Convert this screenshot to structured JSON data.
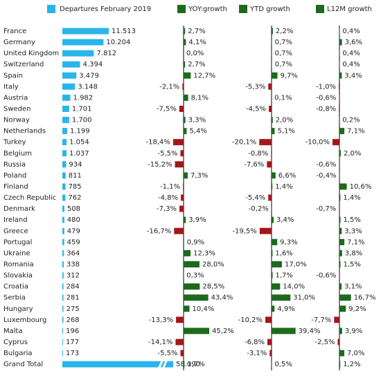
{
  "chart_data": {
    "type": "bar",
    "categories": [
      "France",
      "Germany",
      "United Kingdom",
      "Switzerland",
      "Spain",
      "Italy",
      "Austria",
      "Sweden",
      "Norway",
      "Netherlands",
      "Turkey",
      "Belgium",
      "Russia",
      "Poland",
      "Finland",
      "Czech Republic",
      "Denmark",
      "Ireland",
      "Greece",
      "Portugal",
      "Ukraine",
      "Romania",
      "Slovakia",
      "Croatia",
      "Serbia",
      "Hungary",
      "Luxembourg",
      "Malta",
      "Cyprus",
      "Bulgaria",
      "Grand Total"
    ],
    "negative_color": "#a3161a",
    "series": [
      {
        "name": "Departures February 2019",
        "color": "#29b5ea",
        "values": [
          11513,
          10204,
          7812,
          4394,
          3479,
          3148,
          1982,
          1701,
          1700,
          1199,
          1054,
          1037,
          934,
          811,
          785,
          762,
          508,
          480,
          479,
          459,
          364,
          338,
          312,
          284,
          281,
          275,
          268,
          196,
          177,
          173,
          58090
        ],
        "value_labels": [
          "11.513",
          "10.204",
          "7.812",
          "4.394",
          "3.479",
          "3.148",
          "1.982",
          "1.701",
          "1.700",
          "1.199",
          "1.054",
          "1.037",
          "934",
          "811",
          "785",
          "762",
          "508",
          "480",
          "479",
          "459",
          "364",
          "338",
          "312",
          "284",
          "281",
          "275",
          "268",
          "196",
          "177",
          "173",
          "58.090"
        ]
      },
      {
        "name": "YOY:growth",
        "color": "#1d6a1d",
        "values": [
          2.7,
          4.1,
          0.0,
          2.7,
          12.7,
          -2.1,
          8.1,
          -7.5,
          3.3,
          5.4,
          -18.4,
          -5.5,
          -15.2,
          7.3,
          -1.1,
          -4.8,
          -7.3,
          3.9,
          -16.7,
          0.9,
          12.3,
          28.0,
          0.3,
          28.5,
          43.4,
          10.4,
          -13.3,
          45.2,
          -14.1,
          -5.5,
          1.7
        ],
        "value_labels": [
          "2,7%",
          "4,1%",
          "0,0%",
          "2,7%",
          "12,7%",
          "-2,1%",
          "8,1%",
          "-7,5%",
          "3,3%",
          "5,4%",
          "-18,4%",
          "-5,5%",
          "-15,2%",
          "7,3%",
          "-1,1%",
          "-4,8%",
          "-7,3%",
          "3,9%",
          "-16,7%",
          "0,9%",
          "12,3%",
          "28,0%",
          "0,3%",
          "28,5%",
          "43,4%",
          "10,4%",
          "-13,3%",
          "45,2%",
          "-14,1%",
          "-5,5%",
          "1,7%"
        ]
      },
      {
        "name": "YTD growth",
        "color": "#1d6a1d",
        "values": [
          2.2,
          0.7,
          0.7,
          0.7,
          9.7,
          -5.3,
          0.1,
          -4.5,
          2.0,
          5.1,
          -20.1,
          -0.8,
          -7.6,
          6.6,
          1.4,
          -5.4,
          -0.2,
          3.4,
          -19.5,
          9.3,
          1.6,
          17.0,
          1.7,
          14.0,
          31.0,
          4.9,
          -10.2,
          39.4,
          -6.8,
          -3.1,
          0.5
        ],
        "value_labels": [
          "2,2%",
          "0,7%",
          "0,7%",
          "0,7%",
          "9,7%",
          "-5,3%",
          "0,1%",
          "-4,5%",
          "2,0%",
          "5,1%",
          "-20,1%",
          "-0,8%",
          "-7,6%",
          "6,6%",
          "1,4%",
          "-5,4%",
          "-0,2%",
          "3,4%",
          "-19,5%",
          "9,3%",
          "1,6%",
          "17,0%",
          "1,7%",
          "14,0%",
          "31,0%",
          "4,9%",
          "-10,2%",
          "39,4%",
          "-6,8%",
          "-3,1%",
          "0,5%"
        ]
      },
      {
        "name": "L12M growth",
        "color": "#1d6a1d",
        "values": [
          0.4,
          3.6,
          0.4,
          0.4,
          3.4,
          -1.0,
          -0.6,
          -0.8,
          0.2,
          7.1,
          -10.0,
          2.0,
          -0.6,
          -0.4,
          10.6,
          1.4,
          -0.7,
          1.5,
          3.3,
          7.1,
          3.8,
          1.5,
          -0.6,
          3.1,
          16.7,
          9.2,
          -7.7,
          3.9,
          -2.5,
          7.0,
          1.2
        ],
        "value_labels": [
          "0,4%",
          "3,6%",
          "0,4%",
          "0,4%",
          "3,4%",
          "-1,0%",
          "-0,6%",
          "-0,8%",
          "0,2%",
          "7,1%",
          "-10,0%",
          "2,0%",
          "-0,6%",
          "-0,4%",
          "10,6%",
          "1,4%",
          "-0,7%",
          "1,5%",
          "3,3%",
          "7,1%",
          "3,8%",
          "1,5%",
          "-0,6%",
          "3,1%",
          "16,7%",
          "9,2%",
          "-7,7%",
          "3,9%",
          "-2,5%",
          "7,0%",
          "1,2%"
        ]
      }
    ]
  }
}
